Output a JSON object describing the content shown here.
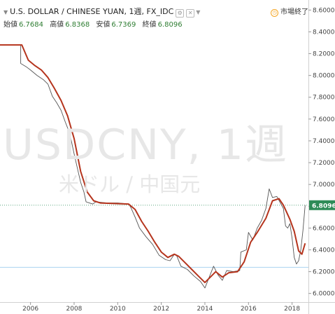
{
  "header": {
    "symbol_title": "U.S. DOLLAR / CHINESE YUAN, 1週, FX_IDC",
    "status_text": "市場終了",
    "ohlc": [
      {
        "label": "始値",
        "value": "6.7684"
      },
      {
        "label": "高値",
        "value": "6.8368"
      },
      {
        "label": "安値",
        "value": "6.7369"
      },
      {
        "label": "終値",
        "value": "6.8096"
      }
    ]
  },
  "watermark": {
    "symbol": "USDCNY, 1週",
    "name": "米ドル / 中国元"
  },
  "price_badge": "6.8096",
  "colors": {
    "price_line": "#555555",
    "moving_average": "#b5341d",
    "badge": "#2e8b57",
    "guide_line": "#5fa882",
    "horizontal_line": "#a9d3f0"
  },
  "icons": [
    "chevron-down-icon",
    "settings-icon",
    "close-icon",
    "clock-icon"
  ],
  "chart_data": {
    "type": "line",
    "title": "U.S. DOLLAR / CHINESE YUAN, 1週, FX_IDC",
    "xlabel": "",
    "ylabel": "",
    "x_ticks": [
      "2006",
      "2008",
      "2010",
      "2012",
      "2014",
      "2016",
      "2018"
    ],
    "y_ticks": [
      "6.0000",
      "6.2000",
      "6.4000",
      "6.6000",
      "6.8000",
      "7.0000",
      "7.2000",
      "7.4000",
      "7.6000",
      "7.8000",
      "8.0000",
      "8.2000",
      "8.4000",
      "8.6000"
    ],
    "xlim": [
      2004.6,
      2018.75
    ],
    "ylim": [
      5.94,
      8.66
    ],
    "grid": false,
    "horizontal_lines": [
      6.8096,
      6.24
    ],
    "series": [
      {
        "values": [
          [
            2004.6,
            8.28
          ],
          [
            2005.55,
            8.28
          ],
          [
            2005.55,
            8.11
          ],
          [
            2005.8,
            8.08
          ],
          [
            2006.0,
            8.05
          ],
          [
            2006.3,
            8.0
          ],
          [
            2006.6,
            7.96
          ],
          [
            2006.8,
            7.92
          ],
          [
            2007.0,
            7.81
          ],
          [
            2007.2,
            7.75
          ],
          [
            2007.4,
            7.68
          ],
          [
            2007.6,
            7.57
          ],
          [
            2007.8,
            7.47
          ],
          [
            2008.0,
            7.28
          ],
          [
            2008.15,
            7.15
          ],
          [
            2008.3,
            7.02
          ],
          [
            2008.45,
            6.93
          ],
          [
            2008.55,
            6.84
          ],
          [
            2008.7,
            6.83
          ],
          [
            2008.85,
            6.82
          ],
          [
            2009.0,
            6.84
          ],
          [
            2009.5,
            6.83
          ],
          [
            2010.0,
            6.83
          ],
          [
            2010.5,
            6.82
          ],
          [
            2010.6,
            6.79
          ],
          [
            2010.8,
            6.7
          ],
          [
            2011.0,
            6.6
          ],
          [
            2011.3,
            6.52
          ],
          [
            2011.6,
            6.45
          ],
          [
            2011.9,
            6.35
          ],
          [
            2012.2,
            6.31
          ],
          [
            2012.4,
            6.3
          ],
          [
            2012.6,
            6.36
          ],
          [
            2012.7,
            6.35
          ],
          [
            2012.9,
            6.25
          ],
          [
            2013.2,
            6.22
          ],
          [
            2013.5,
            6.16
          ],
          [
            2013.8,
            6.11
          ],
          [
            2014.0,
            6.05
          ],
          [
            2014.2,
            6.15
          ],
          [
            2014.4,
            6.25
          ],
          [
            2014.6,
            6.17
          ],
          [
            2014.8,
            6.12
          ],
          [
            2015.0,
            6.21
          ],
          [
            2015.3,
            6.2
          ],
          [
            2015.6,
            6.21
          ],
          [
            2015.65,
            6.38
          ],
          [
            2015.9,
            6.4
          ],
          [
            2016.0,
            6.56
          ],
          [
            2016.2,
            6.49
          ],
          [
            2016.4,
            6.6
          ],
          [
            2016.6,
            6.67
          ],
          [
            2016.8,
            6.78
          ],
          [
            2016.95,
            6.96
          ],
          [
            2017.1,
            6.88
          ],
          [
            2017.3,
            6.89
          ],
          [
            2017.6,
            6.78
          ],
          [
            2017.7,
            6.62
          ],
          [
            2017.8,
            6.6
          ],
          [
            2017.9,
            6.64
          ],
          [
            2018.0,
            6.51
          ],
          [
            2018.1,
            6.33
          ],
          [
            2018.2,
            6.27
          ],
          [
            2018.3,
            6.3
          ],
          [
            2018.4,
            6.4
          ],
          [
            2018.5,
            6.58
          ],
          [
            2018.6,
            6.81
          ]
        ]
      },
      {
        "values": [
          [
            2004.6,
            8.28
          ],
          [
            2005.6,
            8.28
          ],
          [
            2005.9,
            8.14
          ],
          [
            2006.2,
            8.09
          ],
          [
            2006.5,
            8.05
          ],
          [
            2006.8,
            7.98
          ],
          [
            2007.1,
            7.88
          ],
          [
            2007.4,
            7.77
          ],
          [
            2007.7,
            7.63
          ],
          [
            2008.0,
            7.42
          ],
          [
            2008.3,
            7.12
          ],
          [
            2008.6,
            6.93
          ],
          [
            2008.9,
            6.85
          ],
          [
            2009.2,
            6.83
          ],
          [
            2010.5,
            6.82
          ],
          [
            2010.8,
            6.77
          ],
          [
            2011.1,
            6.66
          ],
          [
            2011.4,
            6.57
          ],
          [
            2011.7,
            6.47
          ],
          [
            2012.0,
            6.38
          ],
          [
            2012.3,
            6.33
          ],
          [
            2012.6,
            6.36
          ],
          [
            2012.8,
            6.34
          ],
          [
            2013.1,
            6.28
          ],
          [
            2013.4,
            6.22
          ],
          [
            2013.7,
            6.16
          ],
          [
            2014.0,
            6.1
          ],
          [
            2014.3,
            6.16
          ],
          [
            2014.5,
            6.2
          ],
          [
            2014.8,
            6.15
          ],
          [
            2015.1,
            6.19
          ],
          [
            2015.5,
            6.2
          ],
          [
            2015.8,
            6.29
          ],
          [
            2016.1,
            6.47
          ],
          [
            2016.4,
            6.56
          ],
          [
            2016.8,
            6.69
          ],
          [
            2017.1,
            6.85
          ],
          [
            2017.4,
            6.87
          ],
          [
            2017.6,
            6.81
          ],
          [
            2017.9,
            6.68
          ],
          [
            2018.1,
            6.57
          ],
          [
            2018.3,
            6.39
          ],
          [
            2018.45,
            6.36
          ],
          [
            2018.6,
            6.46
          ]
        ]
      }
    ]
  }
}
